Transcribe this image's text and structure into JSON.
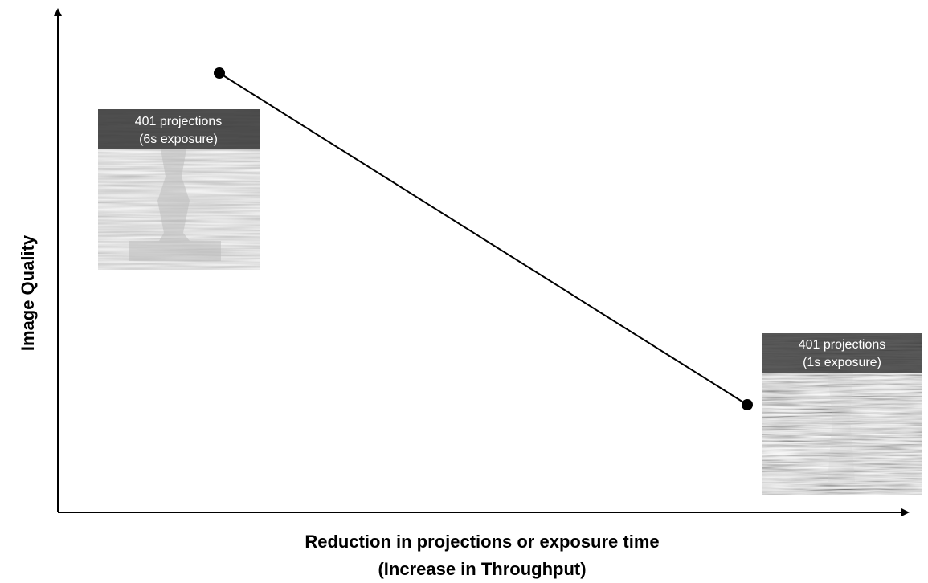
{
  "axes": {
    "y_label": "Image Quality",
    "x_label": [
      "Reduction in projections or exposure time",
      "(Increase in Throughput)"
    ]
  },
  "images": [
    {
      "caption": [
        "401 projections",
        "(6s exposure)"
      ]
    },
    {
      "caption": [
        "401 projections",
        "(1s exposure)"
      ]
    }
  ]
}
